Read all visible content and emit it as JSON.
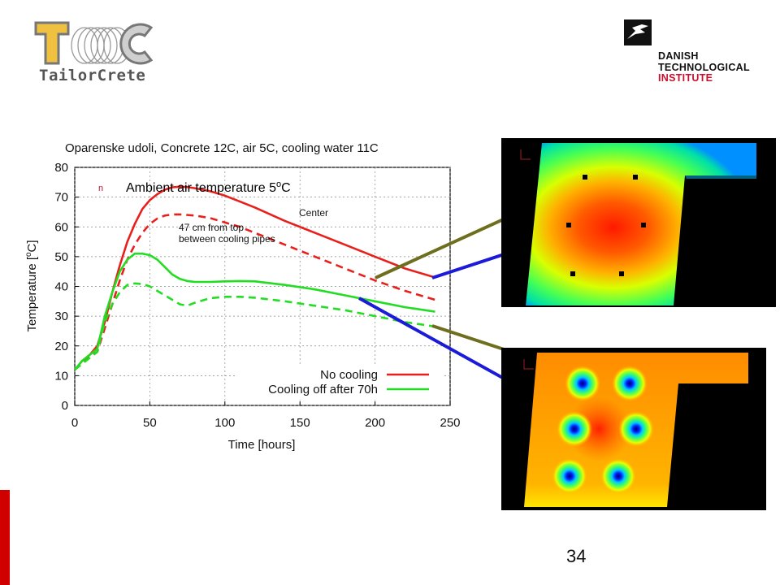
{
  "header": {
    "left_logo_text": "TailorCrete",
    "right_logo": {
      "line1": "DANISH",
      "line2": "TECHNOLOGICAL",
      "line3": "INSTITUTE"
    }
  },
  "bullet": {
    "marker": "n",
    "text": "Ambient air temperature 5",
    "sup": "o",
    "unit": "C"
  },
  "page_number": "34",
  "chart_data": {
    "type": "line",
    "title": "Oparenske udoli, Concrete 12C, air 5C, cooling water 11C",
    "xlabel": "Time [hours]",
    "ylabel": "Temperature [°C]",
    "xlim": [
      0,
      250
    ],
    "ylim": [
      0,
      80
    ],
    "xticks": [
      0,
      50,
      100,
      150,
      200,
      250
    ],
    "yticks": [
      0,
      10,
      20,
      30,
      40,
      50,
      60,
      70,
      80
    ],
    "grid": true,
    "legend_position": "bottom-right",
    "legend": [
      "No cooling",
      "Cooling off after 70h"
    ],
    "annotations": [
      "Center",
      "47 cm from top\nbetween cooling pipes"
    ],
    "colors": {
      "no_cooling": "#e8201c",
      "cooling": "#22dd22"
    },
    "series": [
      {
        "name": "No cooling",
        "style": "solid",
        "color": "#e8201c",
        "x": [
          0,
          5,
          10,
          15,
          20,
          25,
          30,
          35,
          40,
          45,
          50,
          55,
          60,
          65,
          70,
          75,
          80,
          90,
          100,
          110,
          120,
          140,
          160,
          180,
          200,
          220,
          240
        ],
        "y": [
          12,
          15,
          17,
          20,
          28,
          38,
          47,
          55,
          61,
          66,
          69,
          71,
          72.5,
          73.3,
          73.5,
          73.4,
          73,
          72,
          70.5,
          68.5,
          66.5,
          62,
          58,
          54,
          50,
          46,
          43
        ]
      },
      {
        "name": "No cooling",
        "style": "dashed",
        "color": "#e8201c",
        "x": [
          0,
          5,
          10,
          15,
          20,
          25,
          30,
          35,
          40,
          45,
          50,
          55,
          60,
          65,
          70,
          80,
          90,
          100,
          110,
          120,
          140,
          160,
          180,
          200,
          220,
          240
        ],
        "y": [
          12,
          14.5,
          16.5,
          18,
          26,
          34,
          42,
          49,
          54,
          58,
          61,
          62.8,
          63.8,
          64.2,
          64.2,
          63.8,
          63,
          61.5,
          60,
          58,
          54,
          50,
          46,
          42,
          38.5,
          35.5
        ]
      },
      {
        "name": "Cooling off after 70h",
        "style": "solid",
        "color": "#22dd22",
        "x": [
          0,
          5,
          10,
          15,
          20,
          25,
          30,
          35,
          40,
          45,
          50,
          55,
          60,
          65,
          70,
          75,
          80,
          90,
          100,
          110,
          120,
          140,
          160,
          180,
          200,
          220,
          240
        ],
        "y": [
          12,
          15,
          17,
          19,
          30,
          38,
          45,
          49,
          51,
          51,
          50.5,
          49,
          46.5,
          44,
          42.5,
          41.8,
          41.5,
          41.5,
          41.7,
          41.8,
          41.7,
          40.5,
          39,
          37,
          35,
          33,
          31.5
        ]
      },
      {
        "name": "Cooling off after 70h",
        "style": "dashed",
        "color": "#22dd22",
        "x": [
          0,
          5,
          10,
          15,
          20,
          25,
          30,
          35,
          40,
          45,
          50,
          55,
          60,
          65,
          70,
          75,
          80,
          90,
          100,
          110,
          120,
          140,
          160,
          180,
          200,
          220,
          240
        ],
        "y": [
          12,
          14,
          16,
          18,
          28,
          34,
          38,
          40.5,
          41,
          40.8,
          40,
          38.5,
          37,
          35.5,
          34,
          33.5,
          34.5,
          36,
          36.5,
          36.5,
          36.2,
          35,
          33.5,
          32,
          30,
          28,
          26.5
        ]
      }
    ]
  }
}
